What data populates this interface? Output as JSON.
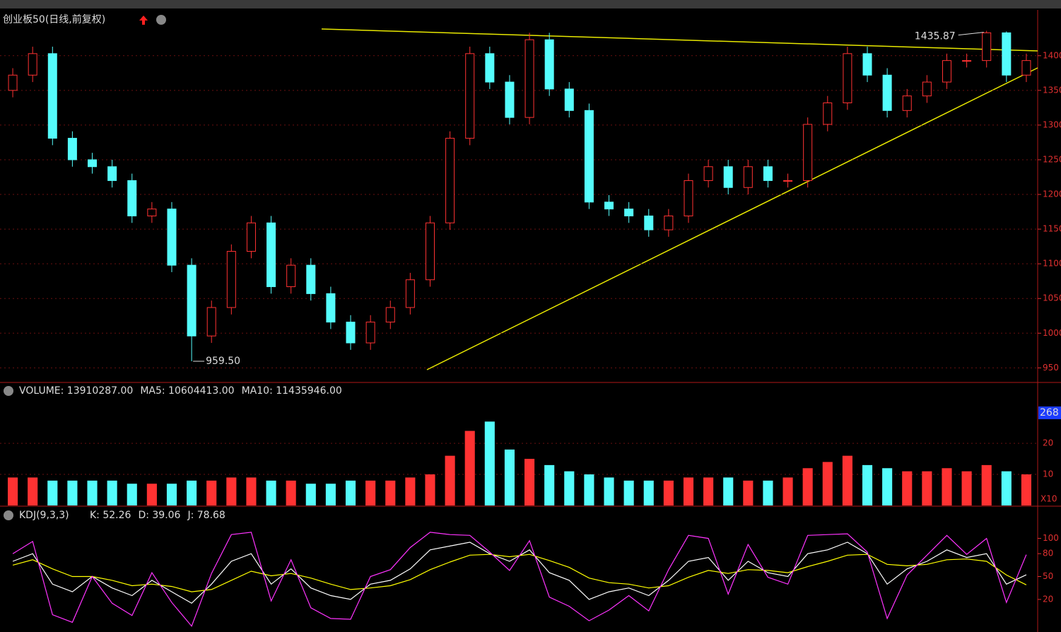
{
  "chart_data": [
    {
      "type": "candlestick",
      "title": "创业板50(日线,前复权)",
      "open": [
        1350,
        1372,
        1403,
        1281,
        1250,
        1240,
        1220,
        1169,
        1179,
        1098,
        996,
        1037,
        1118,
        1159,
        1067,
        1098,
        1057,
        1016,
        986,
        1016,
        1037,
        1077,
        1159,
        1281,
        1403,
        1362,
        1311,
        1423,
        1352,
        1321,
        1189,
        1179,
        1169,
        1149,
        1169,
        1220,
        1240,
        1210,
        1240,
        1220,
        1220,
        1301,
        1332,
        1403,
        1372,
        1321,
        1342,
        1362,
        1393,
        1393,
        1433,
        1372
      ],
      "high": [
        1382,
        1413,
        1413,
        1291,
        1260,
        1250,
        1230,
        1189,
        1189,
        1108,
        1047,
        1128,
        1169,
        1169,
        1108,
        1108,
        1067,
        1026,
        1026,
        1047,
        1087,
        1169,
        1291,
        1413,
        1413,
        1372,
        1433,
        1433,
        1362,
        1331,
        1199,
        1189,
        1179,
        1179,
        1230,
        1250,
        1250,
        1250,
        1250,
        1230,
        1311,
        1342,
        1413,
        1413,
        1382,
        1352,
        1372,
        1403,
        1403,
        1435.87,
        1435,
        1403
      ],
      "low": [
        1340,
        1362,
        1271,
        1240,
        1230,
        1210,
        1159,
        1159,
        1088,
        959.5,
        986,
        1027,
        1108,
        1057,
        1057,
        1047,
        1006,
        976,
        976,
        1006,
        1027,
        1067,
        1149,
        1271,
        1352,
        1301,
        1301,
        1342,
        1311,
        1179,
        1169,
        1159,
        1139,
        1139,
        1159,
        1210,
        1200,
        1200,
        1210,
        1210,
        1210,
        1291,
        1322,
        1362,
        1311,
        1311,
        1332,
        1352,
        1383,
        1383,
        1362,
        1362
      ],
      "close": [
        1372,
        1403,
        1281,
        1250,
        1240,
        1220,
        1169,
        1179,
        1098,
        996,
        1037,
        1118,
        1159,
        1067,
        1098,
        1057,
        1016,
        986,
        1016,
        1037,
        1077,
        1159,
        1281,
        1403,
        1362,
        1311,
        1423,
        1352,
        1321,
        1189,
        1179,
        1169,
        1149,
        1169,
        1220,
        1240,
        1210,
        1240,
        1220,
        1220,
        1301,
        1332,
        1403,
        1372,
        1321,
        1342,
        1362,
        1393,
        1393,
        1433,
        1372,
        1393
      ],
      "up_color": "#ff3232",
      "down_color": "#54fcfc",
      "ylim": [
        930,
        1465
      ],
      "yticks": [
        950,
        1000,
        1050,
        1100,
        1150,
        1200,
        1250,
        1300,
        1350,
        1400
      ],
      "grid": true,
      "annotations": [
        {
          "text": "959.50",
          "value": 959.5
        },
        {
          "text": "1435.87",
          "value": 1435.87
        }
      ]
    },
    {
      "type": "bar",
      "legend": [
        {
          "text": "VOLUME: 13910287.00",
          "color": "#ffffff"
        },
        {
          "text": "MA5: 10604413.00",
          "color": "#ffffff"
        },
        {
          "text": "MA10: 11435946.00",
          "color": "#ffff00"
        }
      ],
      "values": [
        9,
        9,
        8,
        8,
        8,
        8,
        7,
        7,
        7,
        8,
        8,
        9,
        9,
        8,
        8,
        7,
        7,
        8,
        8,
        8,
        9,
        10,
        16,
        24,
        27,
        18,
        15,
        13,
        11,
        10,
        9,
        8,
        8,
        8,
        9,
        9,
        9,
        8,
        8,
        9,
        12,
        14,
        16,
        13,
        12,
        11,
        11,
        12,
        11,
        13,
        11,
        10
      ],
      "ylim": [
        0,
        38
      ],
      "yticks": [
        10,
        20
      ],
      "badge": "268",
      "unit": "X10"
    },
    {
      "type": "line",
      "title": "KDJ(9,3,3)",
      "series": [
        {
          "name": "K: 52.26",
          "color": "#ffffff",
          "values": [
            70,
            80,
            40,
            30,
            50,
            35,
            25,
            45,
            30,
            15,
            40,
            70,
            80,
            40,
            60,
            35,
            25,
            20,
            40,
            45,
            60,
            85,
            90,
            95,
            80,
            70,
            85,
            55,
            45,
            20,
            30,
            35,
            25,
            45,
            70,
            75,
            45,
            70,
            55,
            50,
            80,
            85,
            95,
            80,
            40,
            60,
            70,
            85,
            75,
            80,
            40,
            52.26
          ]
        },
        {
          "name": "D: 39.06",
          "color": "#ffff00",
          "values": [
            65,
            72,
            60,
            50,
            50,
            45,
            38,
            40,
            37,
            30,
            33,
            45,
            57,
            51,
            54,
            48,
            40,
            33,
            35,
            38,
            46,
            59,
            69,
            78,
            79,
            76,
            79,
            71,
            62,
            48,
            42,
            40,
            35,
            38,
            49,
            58,
            54,
            59,
            58,
            55,
            63,
            70,
            78,
            79,
            66,
            64,
            66,
            72,
            73,
            70,
            52,
            39.06
          ]
        },
        {
          "name": "J: 78.68",
          "color": "#ff33ff",
          "values": [
            80,
            96,
            0,
            -10,
            50,
            15,
            -1,
            55,
            16,
            -15,
            54,
            105,
            108,
            18,
            72,
            9,
            -5,
            -6,
            50,
            59,
            88,
            108,
            105,
            104,
            82,
            58,
            97,
            23,
            11,
            -8,
            6,
            25,
            5,
            59,
            104,
            100,
            27,
            92,
            49,
            40,
            104,
            105,
            106,
            82,
            -5,
            52,
            78,
            104,
            79,
            100,
            16,
            78.68
          ]
        }
      ],
      "ylim": [
        -19,
        120
      ],
      "yticks": [
        20,
        50,
        80,
        100
      ]
    }
  ]
}
